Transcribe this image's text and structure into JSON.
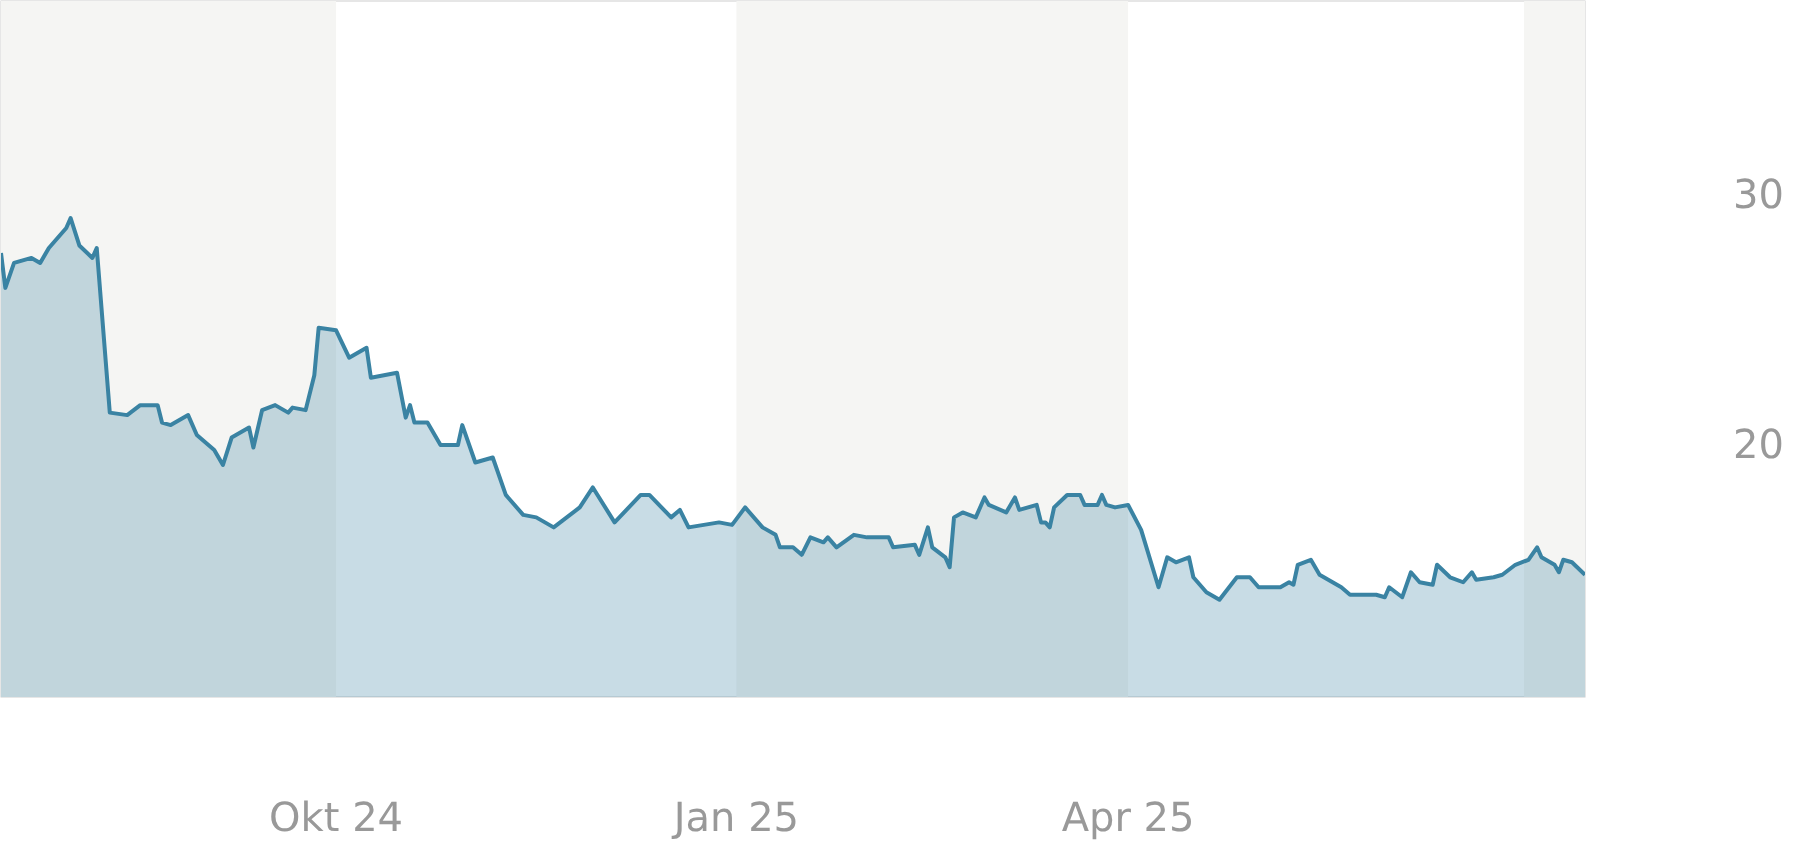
{
  "chart_data": {
    "type": "area",
    "grid": false,
    "xlim": [
      "2024-07-16",
      "2025-07-15"
    ],
    "ylim": [
      9.8,
      37.7
    ],
    "xticks": [
      {
        "value": "2024-10-01",
        "label": "Okt 24"
      },
      {
        "value": "2025-01-01",
        "label": "Jan 25"
      },
      {
        "value": "2025-04-01",
        "label": "Apr 25"
      }
    ],
    "yticks": [
      20,
      30
    ],
    "bands": [
      {
        "axis": "x",
        "from": "2024-07-16",
        "to": "2024-10-01",
        "color": "#f5f5f3"
      },
      {
        "axis": "x",
        "from": "2025-01-01",
        "to": "2025-04-01",
        "color": "#f5f5f3"
      },
      {
        "axis": "x",
        "from": "2025-07-01",
        "to": "2025-07-15",
        "color": "#f5f5f3"
      }
    ],
    "series": [
      {
        "color": "#3a83a3",
        "x": [
          "2024-07-16",
          "2024-07-17",
          "2024-07-19",
          "2024-07-23",
          "2024-07-25",
          "2024-07-27",
          "2024-07-31",
          "2024-08-01",
          "2024-08-03",
          "2024-08-06",
          "2024-08-07",
          "2024-08-10",
          "2024-08-14",
          "2024-08-17",
          "2024-08-21",
          "2024-08-22",
          "2024-08-24",
          "2024-08-28",
          "2024-08-30",
          "2024-09-03",
          "2024-09-05",
          "2024-09-07",
          "2024-09-11",
          "2024-09-12",
          "2024-09-14",
          "2024-09-17",
          "2024-09-20",
          "2024-09-21",
          "2024-09-24",
          "2024-09-26",
          "2024-09-27",
          "2024-10-01",
          "2024-10-04",
          "2024-10-08",
          "2024-10-09",
          "2024-10-12",
          "2024-10-15",
          "2024-10-17",
          "2024-10-18",
          "2024-10-19",
          "2024-10-22",
          "2024-10-25",
          "2024-10-29",
          "2024-10-30",
          "2024-11-02",
          "2024-11-06",
          "2024-11-09",
          "2024-11-13",
          "2024-11-16",
          "2024-11-20",
          "2024-11-26",
          "2024-11-29",
          "2024-12-04",
          "2024-12-10",
          "2024-12-12",
          "2024-12-17",
          "2024-12-19",
          "2024-12-21",
          "2024-12-28",
          "2024-12-31",
          "2025-01-03",
          "2025-01-07",
          "2025-01-10",
          "2025-01-11",
          "2025-01-14",
          "2025-01-16",
          "2025-01-18",
          "2025-01-21",
          "2025-01-22",
          "2025-01-24",
          "2025-01-28",
          "2025-01-31",
          "2025-02-05",
          "2025-02-06",
          "2025-02-11",
          "2025-02-12",
          "2025-02-14",
          "2025-02-15",
          "2025-02-18",
          "2025-02-19",
          "2025-02-20",
          "2025-02-22",
          "2025-02-25",
          "2025-02-27",
          "2025-02-28",
          "2025-03-04",
          "2025-03-06",
          "2025-03-07",
          "2025-03-11",
          "2025-03-12",
          "2025-03-13",
          "2025-03-14",
          "2025-03-15",
          "2025-03-18",
          "2025-03-21",
          "2025-03-22",
          "2025-03-25",
          "2025-03-26",
          "2025-03-27",
          "2025-03-29",
          "2025-04-01",
          "2025-04-04",
          "2025-04-08",
          "2025-04-10",
          "2025-04-12",
          "2025-04-15",
          "2025-04-16",
          "2025-04-19",
          "2025-04-22",
          "2025-04-26",
          "2025-04-29",
          "2025-05-01",
          "2025-05-06",
          "2025-05-08",
          "2025-05-09",
          "2025-05-10",
          "2025-05-13",
          "2025-05-15",
          "2025-05-18",
          "2025-05-20",
          "2025-05-22",
          "2025-05-28",
          "2025-05-30",
          "2025-05-31",
          "2025-06-03",
          "2025-06-05",
          "2025-06-07",
          "2025-06-10",
          "2025-06-11",
          "2025-06-14",
          "2025-06-17",
          "2025-06-19",
          "2025-06-20",
          "2025-06-24",
          "2025-06-26",
          "2025-06-29",
          "2025-07-02",
          "2025-07-04",
          "2025-07-05",
          "2025-07-08",
          "2025-07-09",
          "2025-07-10",
          "2025-07-12",
          "2025-07-15"
        ],
        "values": [
          27.6,
          26.2,
          27.2,
          27.4,
          27.2,
          27.8,
          28.6,
          29.0,
          27.9,
          27.4,
          27.8,
          21.2,
          21.1,
          21.5,
          21.5,
          20.8,
          20.7,
          21.1,
          20.3,
          19.7,
          19.1,
          20.2,
          20.6,
          19.8,
          21.3,
          21.5,
          21.2,
          21.4,
          21.3,
          22.7,
          24.6,
          24.5,
          23.4,
          23.8,
          22.6,
          22.7,
          22.8,
          21.0,
          21.5,
          20.8,
          20.8,
          19.9,
          19.9,
          20.7,
          19.2,
          19.4,
          17.9,
          17.1,
          17.0,
          16.6,
          17.4,
          18.2,
          16.8,
          17.9,
          17.9,
          17.0,
          17.3,
          16.6,
          16.8,
          16.7,
          17.4,
          16.6,
          16.3,
          15.8,
          15.8,
          15.5,
          16.2,
          16.0,
          16.2,
          15.8,
          16.3,
          16.2,
          16.2,
          15.8,
          15.9,
          15.5,
          16.6,
          15.8,
          15.4,
          15.0,
          17.0,
          17.2,
          17.0,
          17.8,
          17.5,
          17.2,
          17.8,
          17.3,
          17.5,
          16.8,
          16.8,
          16.6,
          17.4,
          17.9,
          17.9,
          17.5,
          17.5,
          17.9,
          17.5,
          17.4,
          17.5,
          16.5,
          14.2,
          15.4,
          15.2,
          15.4,
          14.6,
          14.0,
          13.7,
          14.6,
          14.6,
          14.2,
          14.2,
          14.4,
          14.3,
          15.1,
          15.3,
          14.7,
          14.4,
          14.2,
          13.9,
          13.9,
          13.8,
          14.2,
          13.8,
          14.8,
          14.4,
          14.3,
          15.1,
          14.6,
          14.4,
          14.8,
          14.5,
          14.6,
          14.7,
          15.1,
          15.3,
          15.8,
          15.4,
          15.1,
          14.8,
          15.3,
          15.2,
          14.7
        ]
      }
    ]
  }
}
